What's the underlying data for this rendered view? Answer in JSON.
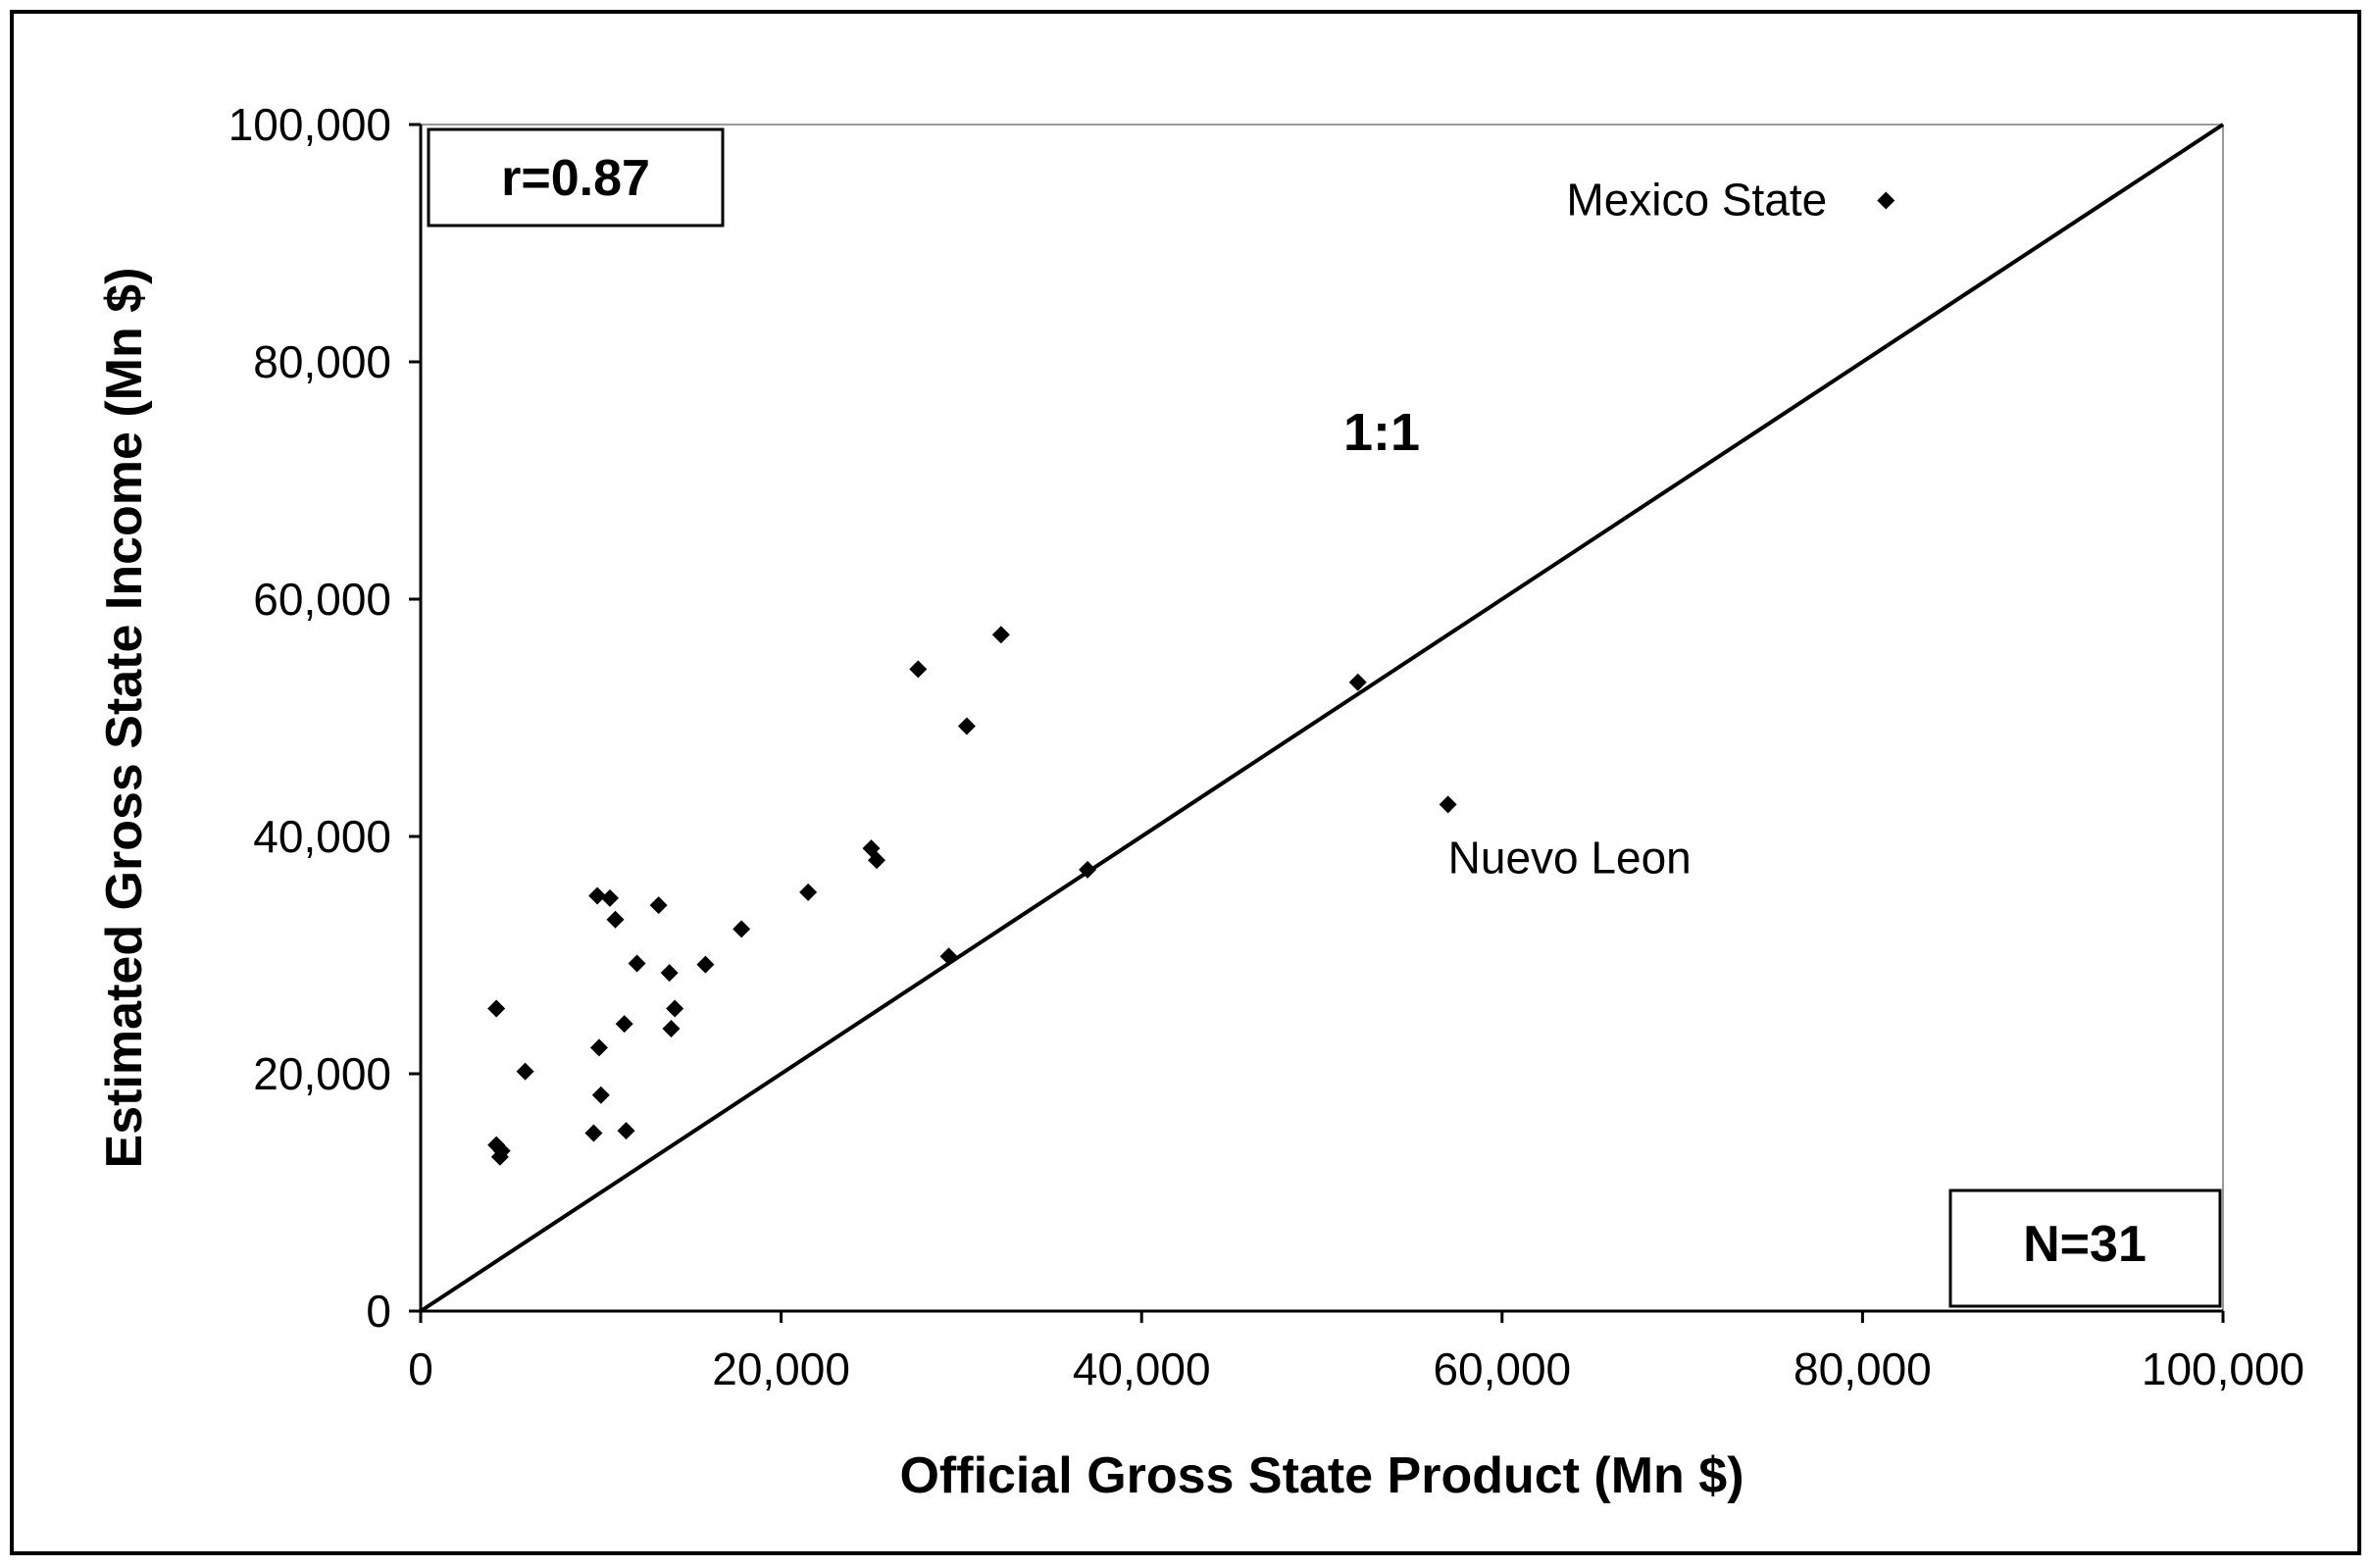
{
  "chart_data": {
    "type": "scatter",
    "xlabel": "Official Gross State Product (Mn $)",
    "ylabel": "Estimated Gross State Income (Mn $)",
    "xlim": [
      0,
      100000
    ],
    "ylim": [
      0,
      100000
    ],
    "x_ticks": [
      "0",
      "20,000",
      "40,000",
      "60,000",
      "80,000",
      "100,000"
    ],
    "y_ticks": [
      "0",
      "20,000",
      "40,000",
      "60,000",
      "80,000",
      "100,000"
    ],
    "grid": false,
    "reference_line": {
      "label": "1:1",
      "from": [
        0,
        0
      ],
      "to": [
        100000,
        100000
      ]
    },
    "stat_box": "r=0.87",
    "n_box": "N=31",
    "annotations": [
      {
        "text": "Mexico State",
        "x": 81300,
        "y": 93600
      },
      {
        "text": "Nuevo Leon",
        "x": 57000,
        "y": 42700
      }
    ],
    "points": [
      {
        "x": 4200,
        "y": 25500
      },
      {
        "x": 4200,
        "y": 14000
      },
      {
        "x": 4400,
        "y": 13000
      },
      {
        "x": 4500,
        "y": 13500
      },
      {
        "x": 5800,
        "y": 20200
      },
      {
        "x": 9600,
        "y": 15000
      },
      {
        "x": 9800,
        "y": 35000
      },
      {
        "x": 9900,
        "y": 22200
      },
      {
        "x": 10000,
        "y": 18200
      },
      {
        "x": 10500,
        "y": 34800
      },
      {
        "x": 10800,
        "y": 33000
      },
      {
        "x": 11300,
        "y": 24200
      },
      {
        "x": 11400,
        "y": 15200
      },
      {
        "x": 12000,
        "y": 29300
      },
      {
        "x": 13200,
        "y": 34200
      },
      {
        "x": 13800,
        "y": 28500
      },
      {
        "x": 13900,
        "y": 23800
      },
      {
        "x": 14100,
        "y": 25500
      },
      {
        "x": 15800,
        "y": 29200
      },
      {
        "x": 17800,
        "y": 32200
      },
      {
        "x": 21500,
        "y": 35300
      },
      {
        "x": 25000,
        "y": 39000
      },
      {
        "x": 25300,
        "y": 38000
      },
      {
        "x": 27600,
        "y": 54100
      },
      {
        "x": 29300,
        "y": 29900
      },
      {
        "x": 30300,
        "y": 49300
      },
      {
        "x": 32200,
        "y": 57000
      },
      {
        "x": 37000,
        "y": 37200
      },
      {
        "x": 52000,
        "y": 53000
      },
      {
        "x": 57000,
        "y": 42700
      },
      {
        "x": 81300,
        "y": 93600
      }
    ]
  }
}
